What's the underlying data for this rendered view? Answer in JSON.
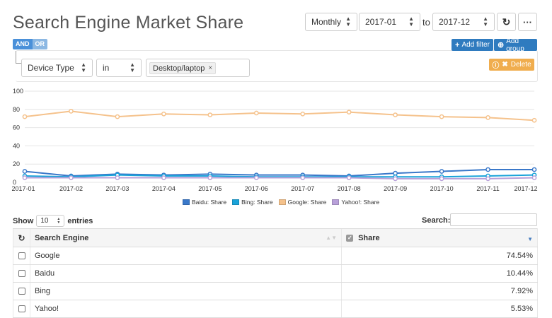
{
  "header": {
    "title": "Search Engine Market Share",
    "period": "Monthly",
    "from": "2017-01",
    "to_label": "to",
    "to": "2017-12",
    "more_label": "···"
  },
  "filters": {
    "and_label": "AND",
    "or_label": "OR",
    "add_filter_label": "Add filter",
    "add_group_label": "Add group",
    "delete_label": "Delete",
    "field": "Device Type",
    "operator": "in",
    "value_tag": "Desktop/laptop",
    "tag_remove": "×"
  },
  "chart_data": {
    "type": "line",
    "x": [
      "2017-01",
      "2017-02",
      "2017-03",
      "2017-04",
      "2017-05",
      "2017-06",
      "2017-07",
      "2017-08",
      "2017-09",
      "2017-10",
      "2017-11",
      "2017-12"
    ],
    "ylim": [
      0,
      100
    ],
    "yticks": [
      0,
      20,
      40,
      60,
      80,
      100
    ],
    "grid": true,
    "legend_position": "bottom",
    "series": [
      {
        "name": "Baidu: Share",
        "color": "#3a78c9",
        "values": [
          12,
          7,
          9,
          8,
          9,
          8,
          8,
          7,
          10,
          12,
          14,
          14
        ]
      },
      {
        "name": "Bing: Share",
        "color": "#1aa3d9",
        "values": [
          7,
          6,
          8,
          7,
          7,
          6,
          6,
          6,
          6,
          6,
          7,
          8
        ]
      },
      {
        "name": "Google: Share",
        "color": "#f5c28c",
        "values": [
          72,
          78,
          72,
          75,
          74,
          76,
          75,
          77,
          74,
          72,
          71,
          68
        ]
      },
      {
        "name": "Yahoo!: Share",
        "color": "#b8a0d9",
        "values": [
          5,
          5,
          5,
          5,
          5,
          5,
          5,
          5,
          4,
          4,
          4,
          5
        ]
      }
    ]
  },
  "table": {
    "show_label": "Show",
    "entries_value": "10",
    "entries_label": "entries",
    "search_label": "Search:",
    "columns": [
      "Search Engine",
      "Share"
    ],
    "rows": [
      {
        "engine": "Google",
        "share": "74.54%"
      },
      {
        "engine": "Baidu",
        "share": "10.44%"
      },
      {
        "engine": "Bing",
        "share": "7.92%"
      },
      {
        "engine": "Yahoo!",
        "share": "5.53%"
      }
    ]
  }
}
